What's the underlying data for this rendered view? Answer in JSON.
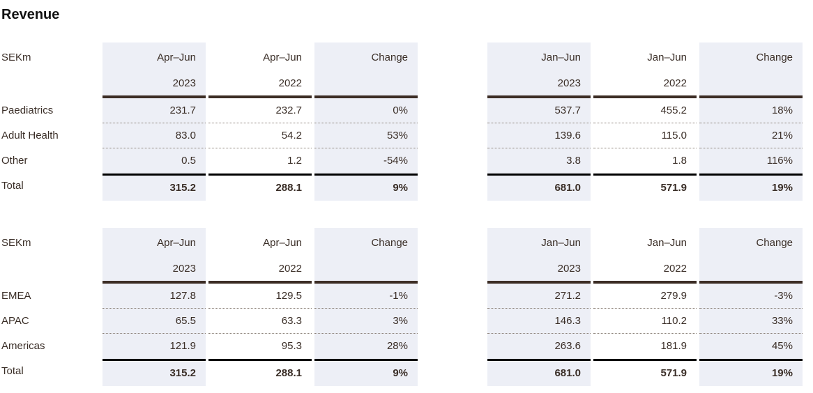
{
  "title": "Revenue",
  "colors": {
    "shaded_column_bg": "#edeff6",
    "header_rule": "#3c2d25",
    "total_rule": "#000000",
    "body_text": "#3a2e27",
    "row_divider_dotted": "#8b8178"
  },
  "tables": [
    {
      "unit": "SEKm",
      "quarter_headers": {
        "col1_line1": "Apr–Jun",
        "col1_line2": "2023",
        "col2_line1": "Apr–Jun",
        "col2_line2": "2022",
        "col3_line1": "Change",
        "col3_line2": ""
      },
      "half_headers": {
        "col1_line1": "Jan–Jun",
        "col1_line2": "2023",
        "col2_line1": "Jan–Jun",
        "col2_line2": "2022",
        "col3_line1": "Change",
        "col3_line2": ""
      },
      "rows": [
        {
          "label": "Paediatrics",
          "q1": "231.7",
          "q2": "232.7",
          "qc": "0%",
          "h1": "537.7",
          "h2": "455.2",
          "hc": "18%"
        },
        {
          "label": "Adult Health",
          "q1": "83.0",
          "q2": "54.2",
          "qc": "53%",
          "h1": "139.6",
          "h2": "115.0",
          "hc": "21%"
        },
        {
          "label": "Other",
          "q1": "0.5",
          "q2": "1.2",
          "qc": "-54%",
          "h1": "3.8",
          "h2": "1.8",
          "hc": "116%"
        }
      ],
      "total": {
        "label": "Total",
        "q1": "315.2",
        "q2": "288.1",
        "qc": "9%",
        "h1": "681.0",
        "h2": "571.9",
        "hc": "19%"
      }
    },
    {
      "unit": "SEKm",
      "quarter_headers": {
        "col1_line1": "Apr–Jun",
        "col1_line2": "2023",
        "col2_line1": "Apr–Jun",
        "col2_line2": "2022",
        "col3_line1": "Change",
        "col3_line2": ""
      },
      "half_headers": {
        "col1_line1": "Jan–Jun",
        "col1_line2": "2023",
        "col2_line1": "Jan–Jun",
        "col2_line2": "2022",
        "col3_line1": "Change",
        "col3_line2": ""
      },
      "rows": [
        {
          "label": "EMEA",
          "q1": "127.8",
          "q2": "129.5",
          "qc": "-1%",
          "h1": "271.2",
          "h2": "279.9",
          "hc": "-3%"
        },
        {
          "label": "APAC",
          "q1": "65.5",
          "q2": "63.3",
          "qc": "3%",
          "h1": "146.3",
          "h2": "110.2",
          "hc": "33%"
        },
        {
          "label": "Americas",
          "q1": "121.9",
          "q2": "95.3",
          "qc": "28%",
          "h1": "263.6",
          "h2": "181.9",
          "hc": "45%"
        }
      ],
      "total": {
        "label": "Total",
        "q1": "315.2",
        "q2": "288.1",
        "qc": "9%",
        "h1": "681.0",
        "h2": "571.9",
        "hc": "19%"
      }
    }
  ]
}
